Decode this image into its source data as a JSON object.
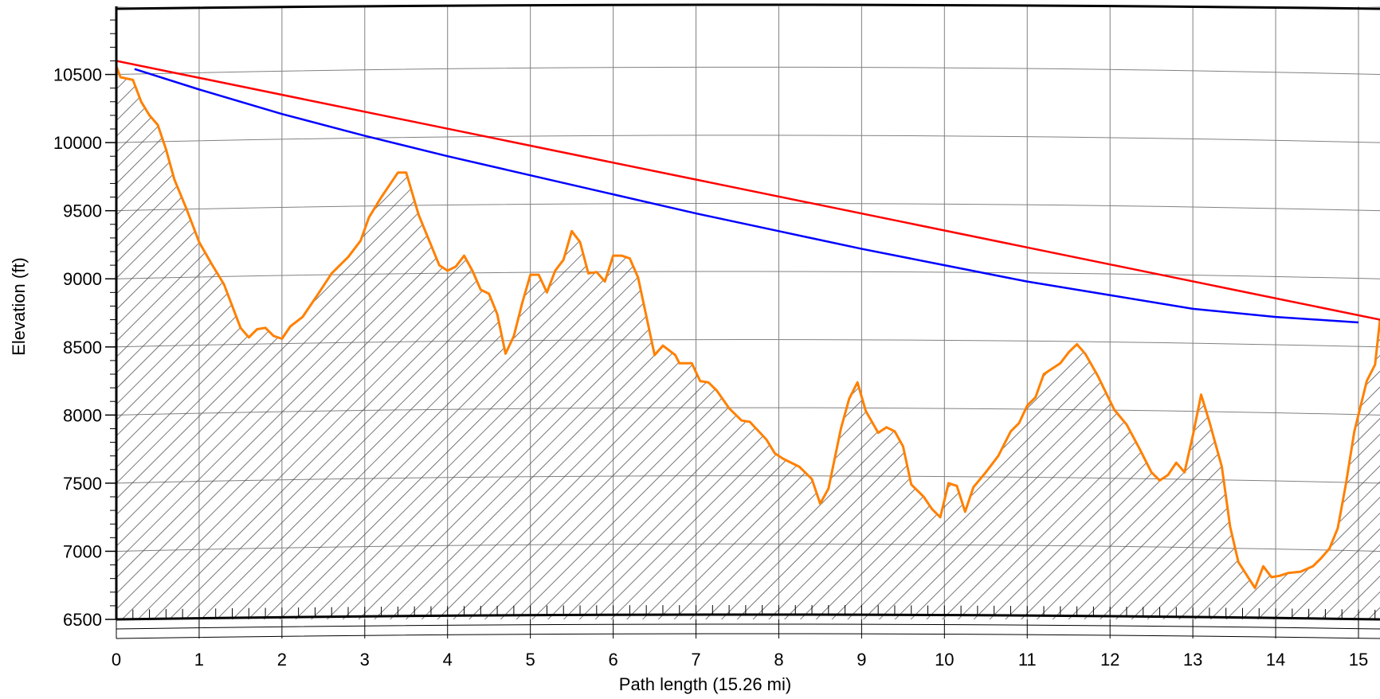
{
  "chart_data": {
    "type": "area",
    "title": "",
    "xlabel": "Path length (15.26 mi)",
    "ylabel": "Elevation (ft)",
    "xlim": [
      0,
      15.26
    ],
    "ylim": [
      6500,
      11000
    ],
    "x_ticks": [
      0,
      1,
      2,
      3,
      4,
      5,
      6,
      7,
      8,
      9,
      10,
      11,
      12,
      13,
      14,
      15
    ],
    "y_ticks": [
      6500,
      7000,
      7500,
      8000,
      8500,
      9000,
      9500,
      10000,
      10500
    ],
    "grid": true,
    "terrain_fill": "hatched",
    "colors": {
      "terrain": "#ff8000",
      "line_of_sight": "#ff0000",
      "radio_path": "#0000ff",
      "grid": "#808080",
      "hatch": "#555555"
    },
    "series": [
      {
        "name": "",
        "role": "terrain",
        "points": [
          [
            0.0,
            10560
          ],
          [
            0.05,
            10480
          ],
          [
            0.2,
            10460
          ],
          [
            0.3,
            10300
          ],
          [
            0.4,
            10200
          ],
          [
            0.5,
            10130
          ],
          [
            0.6,
            9950
          ],
          [
            0.7,
            9730
          ],
          [
            0.85,
            9510
          ],
          [
            1.0,
            9270
          ],
          [
            1.15,
            9110
          ],
          [
            1.3,
            8960
          ],
          [
            1.5,
            8640
          ],
          [
            1.6,
            8570
          ],
          [
            1.7,
            8630
          ],
          [
            1.8,
            8640
          ],
          [
            1.9,
            8580
          ],
          [
            2.0,
            8560
          ],
          [
            2.1,
            8650
          ],
          [
            2.25,
            8720
          ],
          [
            2.45,
            8900
          ],
          [
            2.6,
            9040
          ],
          [
            2.8,
            9160
          ],
          [
            2.95,
            9280
          ],
          [
            3.05,
            9450
          ],
          [
            3.2,
            9600
          ],
          [
            3.4,
            9780
          ],
          [
            3.5,
            9780
          ],
          [
            3.65,
            9470
          ],
          [
            3.9,
            9100
          ],
          [
            4.0,
            9060
          ],
          [
            4.1,
            9090
          ],
          [
            4.2,
            9170
          ],
          [
            4.3,
            9060
          ],
          [
            4.4,
            8920
          ],
          [
            4.5,
            8890
          ],
          [
            4.6,
            8740
          ],
          [
            4.7,
            8450
          ],
          [
            4.8,
            8580
          ],
          [
            4.9,
            8820
          ],
          [
            5.0,
            9030
          ],
          [
            5.1,
            9030
          ],
          [
            5.2,
            8900
          ],
          [
            5.3,
            9060
          ],
          [
            5.4,
            9140
          ],
          [
            5.5,
            9350
          ],
          [
            5.6,
            9270
          ],
          [
            5.7,
            9040
          ],
          [
            5.8,
            9050
          ],
          [
            5.9,
            8980
          ],
          [
            6.0,
            9170
          ],
          [
            6.1,
            9170
          ],
          [
            6.2,
            9150
          ],
          [
            6.3,
            9010
          ],
          [
            6.5,
            8440
          ],
          [
            6.6,
            8510
          ],
          [
            6.75,
            8440
          ],
          [
            6.8,
            8380
          ],
          [
            6.95,
            8380
          ],
          [
            7.05,
            8250
          ],
          [
            7.15,
            8240
          ],
          [
            7.25,
            8180
          ],
          [
            7.4,
            8050
          ],
          [
            7.55,
            7960
          ],
          [
            7.65,
            7950
          ],
          [
            7.85,
            7820
          ],
          [
            7.95,
            7720
          ],
          [
            8.05,
            7680
          ],
          [
            8.25,
            7620
          ],
          [
            8.4,
            7530
          ],
          [
            8.5,
            7350
          ],
          [
            8.6,
            7460
          ],
          [
            8.75,
            7900
          ],
          [
            8.85,
            8120
          ],
          [
            8.95,
            8240
          ],
          [
            9.05,
            8030
          ],
          [
            9.2,
            7870
          ],
          [
            9.3,
            7910
          ],
          [
            9.4,
            7880
          ],
          [
            9.5,
            7770
          ],
          [
            9.6,
            7490
          ],
          [
            9.75,
            7400
          ],
          [
            9.85,
            7310
          ],
          [
            9.95,
            7250
          ],
          [
            10.05,
            7500
          ],
          [
            10.15,
            7480
          ],
          [
            10.25,
            7290
          ],
          [
            10.35,
            7470
          ],
          [
            10.5,
            7580
          ],
          [
            10.65,
            7700
          ],
          [
            10.8,
            7880
          ],
          [
            10.9,
            7940
          ],
          [
            11.0,
            8070
          ],
          [
            11.1,
            8130
          ],
          [
            11.2,
            8300
          ],
          [
            11.4,
            8380
          ],
          [
            11.5,
            8460
          ],
          [
            11.6,
            8520
          ],
          [
            11.7,
            8450
          ],
          [
            11.85,
            8290
          ],
          [
            12.05,
            8040
          ],
          [
            12.2,
            7930
          ],
          [
            12.35,
            7760
          ],
          [
            12.5,
            7580
          ],
          [
            12.6,
            7520
          ],
          [
            12.7,
            7560
          ],
          [
            12.8,
            7650
          ],
          [
            12.9,
            7580
          ],
          [
            13.0,
            7850
          ],
          [
            13.1,
            8150
          ],
          [
            13.2,
            7950
          ],
          [
            13.35,
            7620
          ],
          [
            13.45,
            7180
          ],
          [
            13.55,
            6920
          ],
          [
            13.75,
            6730
          ],
          [
            13.85,
            6890
          ],
          [
            13.95,
            6810
          ],
          [
            14.05,
            6820
          ],
          [
            14.15,
            6840
          ],
          [
            14.3,
            6850
          ],
          [
            14.45,
            6890
          ],
          [
            14.55,
            6950
          ],
          [
            14.65,
            7020
          ],
          [
            14.75,
            7170
          ],
          [
            14.85,
            7500
          ],
          [
            14.95,
            7880
          ],
          [
            15.1,
            8250
          ],
          [
            15.2,
            8370
          ],
          [
            15.26,
            8700
          ]
        ]
      },
      {
        "name": "",
        "role": "line-of-sight",
        "points": [
          [
            0.0,
            10600
          ],
          [
            15.26,
            8700
          ]
        ]
      },
      {
        "name": "",
        "role": "radio-path",
        "points": [
          [
            0.22,
            10540
          ],
          [
            1.0,
            10390
          ],
          [
            2.0,
            10210
          ],
          [
            3.0,
            10050
          ],
          [
            4.0,
            9900
          ],
          [
            5.0,
            9760
          ],
          [
            6.0,
            9620
          ],
          [
            7.0,
            9480
          ],
          [
            8.0,
            9350
          ],
          [
            9.0,
            9220
          ],
          [
            10.0,
            9100
          ],
          [
            11.0,
            8980
          ],
          [
            12.0,
            8880
          ],
          [
            13.0,
            8780
          ],
          [
            14.0,
            8720
          ],
          [
            15.0,
            8680
          ]
        ]
      }
    ]
  }
}
